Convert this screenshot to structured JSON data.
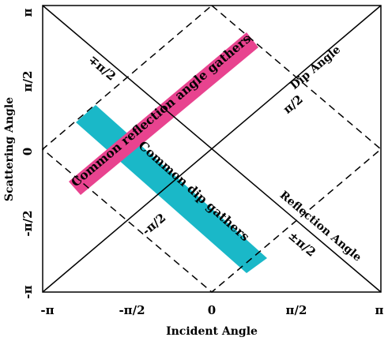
{
  "axes": {
    "x_label": "Incident Angle",
    "y_label": "Scattering Angle",
    "x_ticks": [
      "-π",
      "-π/2",
      "0",
      "π/2",
      "π"
    ],
    "y_ticks": [
      "π",
      "π/2",
      "0",
      "-π/2",
      "-π"
    ]
  },
  "diagonal_axes": {
    "dip_label": "Dip Angle",
    "reflection_label": "Reflection Angle"
  },
  "diamond_labels": {
    "upper_left": "∓π/2",
    "upper_right": "π/2",
    "lower_left": "-π/2",
    "lower_right": "±π/2"
  },
  "bands": {
    "reflection": {
      "label": "Common reflection angle gathers",
      "color": "#e8438f"
    },
    "dip": {
      "label": "Common dip gathers",
      "color": "#1ab8c8"
    }
  }
}
